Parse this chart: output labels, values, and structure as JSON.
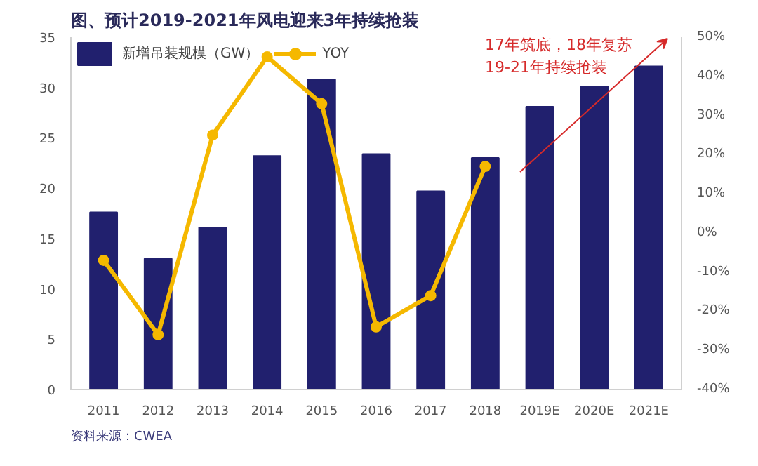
{
  "chart_data": {
    "type": "bar",
    "title": "图、预计2019-2021年风电迎来3年持续抢装",
    "categories": [
      "2011",
      "2012",
      "2013",
      "2014",
      "2015",
      "2016",
      "2017",
      "2018",
      "2019E",
      "2020E",
      "2021E"
    ],
    "series": [
      {
        "name": "新增吊装规模（GW）",
        "color": "#21206e",
        "values": [
          17.6,
          13.0,
          16.1,
          23.2,
          30.8,
          23.4,
          19.7,
          23.0,
          28.1,
          30.1,
          32.1
        ]
      },
      {
        "name": "YOY",
        "type": "line",
        "axis": "y2",
        "color": "#f5b800",
        "values": [
          -7,
          -26,
          25,
          45,
          33,
          -24,
          -16,
          17,
          null,
          null,
          null
        ]
      }
    ],
    "ylim": [
      0,
      35
    ],
    "yticks": [
      0,
      5,
      10,
      15,
      20,
      25,
      30,
      35
    ],
    "y2lim": [
      -40,
      50
    ],
    "y2ticks": [
      {
        "value": -40,
        "label": "-40%"
      },
      {
        "value": -30,
        "label": "-30%"
      },
      {
        "value": -20,
        "label": "-20%"
      },
      {
        "value": -10,
        "label": "-10%"
      },
      {
        "value": 0,
        "label": "0%"
      },
      {
        "value": 10,
        "label": "10%"
      },
      {
        "value": 20,
        "label": "20%"
      },
      {
        "value": 30,
        "label": "30%"
      },
      {
        "value": 40,
        "label": "40%"
      },
      {
        "value": 50,
        "label": "50%"
      }
    ],
    "marker": "circle",
    "line_style": "solid",
    "grid": false,
    "legend": "top left",
    "annotations": [
      "17年筑底，18年复苏\n19-21年持续抢装",
      "资料来源：CWEA"
    ]
  }
}
